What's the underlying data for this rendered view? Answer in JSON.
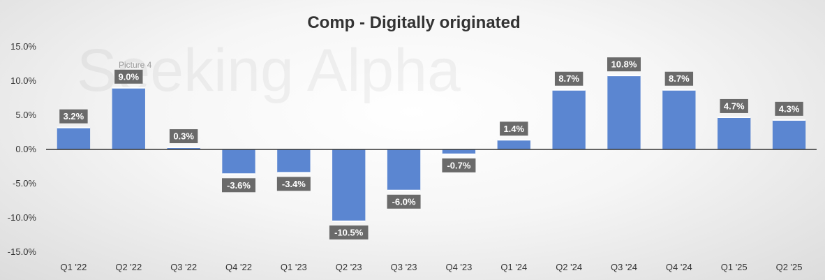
{
  "overlay": {
    "watermark": "Seeking Alpha",
    "picture_tag": "Picture 4"
  },
  "colors": {
    "bar": "#5b86d1",
    "label_bg": "#6a6a6a",
    "axis": "#333333"
  },
  "chart_data": {
    "type": "bar",
    "title": "Comp - Digitally originated",
    "xlabel": "",
    "ylabel": "",
    "categories": [
      "Q1 '22",
      "Q2 '22",
      "Q3 '22",
      "Q4 '22",
      "Q1 '23",
      "Q2 '23",
      "Q3 '23",
      "Q4 '23",
      "Q1 '24",
      "Q2 '24",
      "Q3 '24",
      "Q4 '24",
      "Q1 '25",
      "Q2 '25"
    ],
    "values": [
      3.2,
      9.0,
      0.3,
      -3.6,
      -3.4,
      -10.5,
      -6.0,
      -0.7,
      1.4,
      8.7,
      10.8,
      8.7,
      4.7,
      4.3
    ],
    "value_labels": [
      "3.2%",
      "9.0%",
      "0.3%",
      "-3.6%",
      "-3.4%",
      "-10.5%",
      "-6.0%",
      "-0.7%",
      "1.4%",
      "8.7%",
      "10.8%",
      "8.7%",
      "4.7%",
      "4.3%"
    ],
    "ylim": [
      -15,
      15
    ],
    "yticks": [
      15,
      10,
      5,
      0,
      -5,
      -10,
      -15
    ],
    "ytick_labels": [
      "15.0%",
      "10.0%",
      "5.0%",
      "0.0%",
      "-5.0%",
      "-10.0%",
      "-15.0%"
    ],
    "grid": false,
    "legend": "none"
  }
}
